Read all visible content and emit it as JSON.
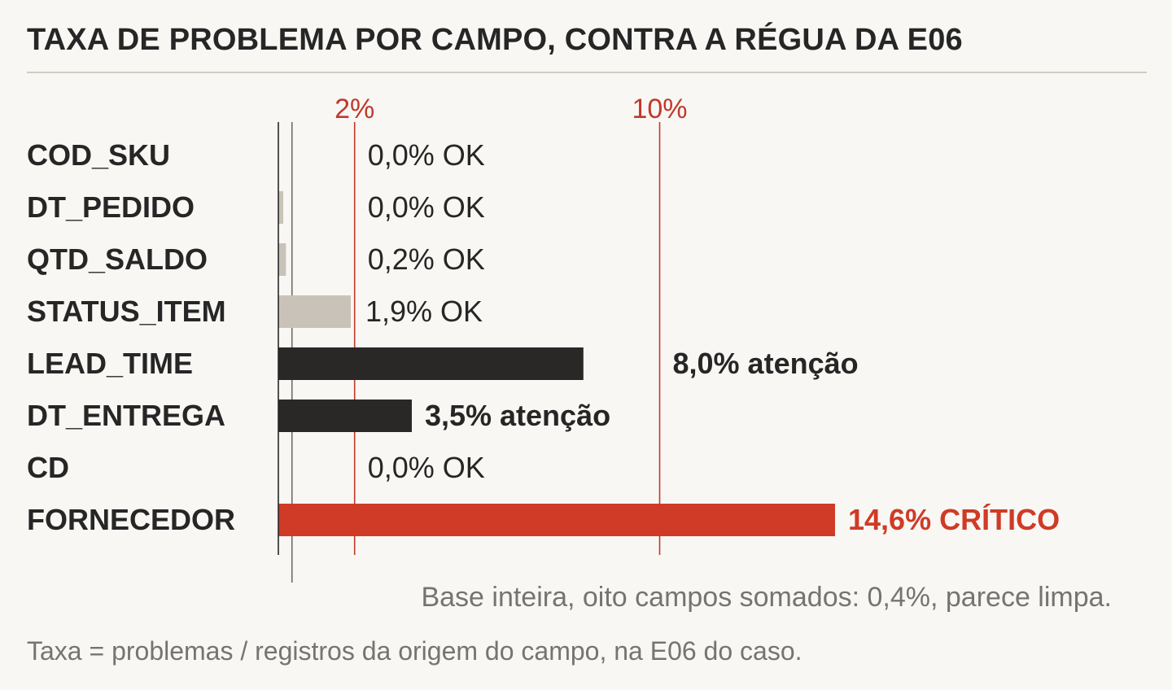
{
  "title": "TAXA DE PROBLEMA POR CAMPO, CONTRA A RÉGUA DA E06",
  "footnote": "Taxa = problemas / registros da origem do campo, na E06 do caso.",
  "colors": {
    "ok": "#c9c2b8",
    "atencao": "#2a2826",
    "critico": "#cf3b26",
    "threshold": "#c0392b",
    "text": "#262626",
    "muted": "#767470"
  },
  "chart_data": {
    "type": "bar",
    "orientation": "horizontal",
    "unit": "%",
    "xlim": [
      0,
      14.6
    ],
    "categories": [
      "COD_SKU",
      "DT_PEDIDO",
      "QTD_SALDO",
      "STATUS_ITEM",
      "LEAD_TIME",
      "DT_ENTREGA",
      "CD",
      "FORNECEDOR"
    ],
    "values": [
      0.0,
      0.0,
      0.2,
      1.9,
      8.0,
      3.5,
      0.0,
      14.6
    ],
    "value_labels": [
      "0,0%",
      "0,0%",
      "0,2%",
      "1,9%",
      "8,0%",
      "3,5%",
      "0,0%",
      "14,6%"
    ],
    "status_labels": [
      "OK",
      "OK",
      "OK",
      "OK",
      "atenção",
      "atenção",
      "OK",
      "CRÍTICO"
    ],
    "status": [
      "ok",
      "ok",
      "ok",
      "ok",
      "atencao",
      "atencao",
      "ok",
      "critico"
    ],
    "thresholds": [
      {
        "value": 2,
        "label": "2%"
      },
      {
        "value": 10,
        "label": "10%"
      }
    ],
    "reference": {
      "value": 0.4,
      "label": "Base inteira, oito campos somados: 0,4%, parece limpa."
    }
  }
}
